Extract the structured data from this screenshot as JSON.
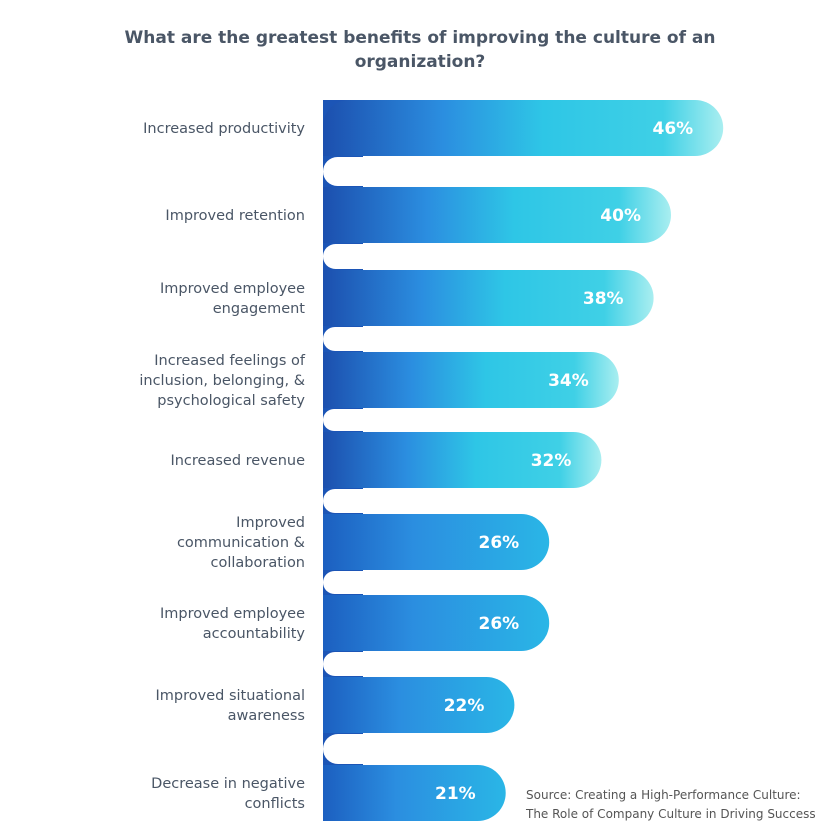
{
  "chart_data": {
    "type": "bar",
    "orientation": "horizontal",
    "title": "What are the greatest benefits of improving the culture of an organization?",
    "categories": [
      [
        "Increased productivity"
      ],
      [
        "Improved retention"
      ],
      [
        "Improved employee",
        "engagement"
      ],
      [
        "Increased feelings of",
        "inclusion, belonging, &",
        "psychological safety"
      ],
      [
        "Increased revenue"
      ],
      [
        "Improved",
        "communication &",
        "collaboration"
      ],
      [
        "Improved employee",
        "accountability"
      ],
      [
        "Improved situational",
        "awareness"
      ],
      [
        "Decrease in negative",
        "conflicts"
      ]
    ],
    "values": [
      46,
      40,
      38,
      34,
      32,
      26,
      26,
      22,
      21
    ],
    "value_labels": [
      "46%",
      "40%",
      "38%",
      "34%",
      "32%",
      "26%",
      "26%",
      "22%",
      "21%"
    ],
    "unit": "%",
    "grid": false,
    "colors": {
      "dark": "#1c4fae",
      "mid": "#2b8ee0",
      "cyan": "#2ec6e6",
      "light": "#a9eef0"
    }
  },
  "source": {
    "line1": "Source: Creating a High-Performance Culture:",
    "line2": "The Role of Company Culture in Driving Success"
  }
}
